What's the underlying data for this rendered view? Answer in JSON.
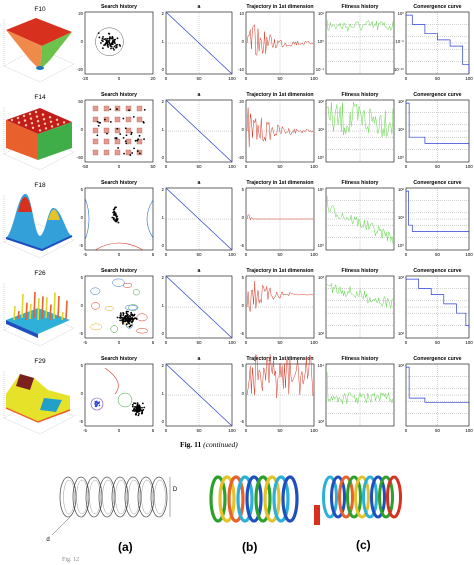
{
  "figure": {
    "caption_label": "Fig. 11",
    "caption_rest": " (continued)",
    "bottom_caption_fragment": "Fig. 12"
  },
  "rows": [
    {
      "fn": "F10",
      "titles": [
        "Search history",
        "a",
        "Trajectory in 1st dimension",
        "Fitness history",
        "Convergence curve"
      ],
      "search_x": [
        "-20",
        "0",
        "20"
      ],
      "search_y": [
        "20",
        "0",
        "-20"
      ],
      "a_x": [
        "0",
        "50",
        "100"
      ],
      "a_y": [
        "2",
        "1",
        "0"
      ],
      "traj_x": [
        "0",
        "50",
        "100"
      ],
      "traj_y": [
        "10",
        "0",
        "-10"
      ],
      "fit_y": [
        "10¹",
        "10⁰",
        "10⁻¹"
      ],
      "conv_y": [
        "10⁰",
        "10⁻⁵",
        "10⁻¹⁰"
      ],
      "conv_x": [
        "0",
        "50",
        "100"
      ]
    },
    {
      "fn": "F14",
      "titles": [
        "Search history",
        "a",
        "Trajectory in 1st dimension",
        "Fitness history",
        "Convergence curve"
      ],
      "search_x": [
        "-50",
        "0",
        "50"
      ],
      "search_y": [
        "50",
        "0",
        "-50"
      ],
      "a_x": [
        "0",
        "50",
        "100"
      ],
      "a_y": [
        "2",
        "1",
        "0"
      ],
      "traj_x": [
        "0",
        "50",
        "100"
      ],
      "traj_y": [
        "20",
        "0",
        "-20"
      ],
      "fit_y": [
        "10²",
        "10¹",
        "10⁰"
      ],
      "conv_y": [
        "10²",
        "10¹",
        "10⁰"
      ],
      "conv_x": [
        "0",
        "50",
        "100"
      ]
    },
    {
      "fn": "F18",
      "titles": [
        "Search history",
        "a",
        "Trajectory in 1st dimension",
        "Fitness history",
        "Convergence curve"
      ],
      "search_x": [
        "-5",
        "0",
        "5"
      ],
      "search_y": [
        "5",
        "0",
        "-5"
      ],
      "a_x": [
        "0",
        "50",
        "100"
      ],
      "a_y": [
        "2",
        "1",
        "0"
      ],
      "traj_x": [
        "0",
        "50",
        "100"
      ],
      "traj_y": [
        "5",
        "0",
        "-5"
      ],
      "fit_y": [
        "10⁵",
        "10⁰"
      ],
      "conv_y": [
        "10²",
        "10¹",
        "10⁰"
      ],
      "conv_x": [
        "0",
        "50",
        "100"
      ]
    },
    {
      "fn": "F26",
      "titles": [
        "Search history",
        "a",
        "Trajectory in 1st dimension",
        "Fitness history",
        "Convergence curve"
      ],
      "search_x": [
        "-5",
        "0",
        "5"
      ],
      "search_y": [
        "5",
        "0",
        "-5"
      ],
      "a_x": [
        "0",
        "50",
        "100"
      ],
      "a_y": [
        "2",
        "1",
        "0"
      ],
      "traj_x": [
        "0",
        "50",
        "100"
      ],
      "traj_y": [
        "5",
        "0",
        "-5"
      ],
      "fit_y": [
        "10³",
        "10²"
      ],
      "conv_y": [
        "10³",
        "10²"
      ],
      "conv_x": [
        "0",
        "50",
        "100"
      ]
    },
    {
      "fn": "F29",
      "titles": [
        "Search history",
        "a",
        "Trajectory in 1st dimension",
        "Fitness history",
        "Convergence curve"
      ],
      "search_x": [
        "-5",
        "0",
        "5"
      ],
      "search_y": [
        "5",
        "0",
        "-5"
      ],
      "a_x": [
        "0",
        "50",
        "100"
      ],
      "a_y": [
        "2",
        "1",
        "0"
      ],
      "traj_x": [
        "0",
        "50",
        "100"
      ],
      "traj_y": [
        "5",
        "0",
        "-5"
      ],
      "fit_y": [
        "10⁴",
        "10³"
      ],
      "conv_y": [
        "10³"
      ],
      "conv_x": [
        "0",
        "50",
        "100"
      ]
    }
  ],
  "surface_axis_labels": [
    "-20",
    "0",
    "20",
    "-50",
    "0",
    "50",
    "-5",
    "0",
    "5",
    "2000",
    "1000",
    "400",
    "200",
    "x 10⁶"
  ],
  "spring": {
    "labels": [
      "(a)",
      "(b)",
      "(c)"
    ],
    "dim_d": "d",
    "dim_D": "D"
  }
}
